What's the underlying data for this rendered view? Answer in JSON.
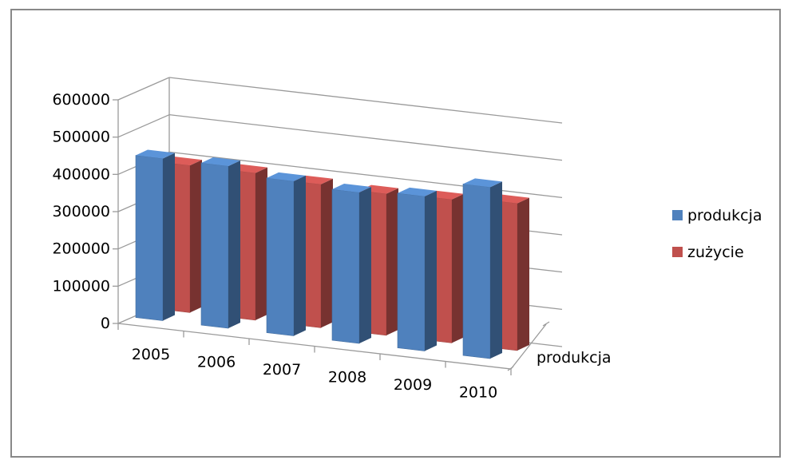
{
  "chart_data": {
    "type": "bar",
    "title": "",
    "xlabel": "",
    "ylabel": "",
    "depth_axis_label": "produkcja",
    "categories": [
      "2005",
      "2006",
      "2007",
      "2008",
      "2009",
      "2010"
    ],
    "series": [
      {
        "name": "produkcja",
        "color": "#4F81BD",
        "values": [
          435000,
          435000,
          415000,
          405000,
          415000,
          460000
        ]
      },
      {
        "name": "zużycie",
        "color": "#C0504D",
        "values": [
          395000,
          395000,
          385000,
          380000,
          385000,
          395000
        ]
      }
    ],
    "ylim": [
      0,
      600000
    ],
    "yticks": [
      "0",
      "100000",
      "200000",
      "300000",
      "400000",
      "500000",
      "600000"
    ],
    "grid": true,
    "legend": "right"
  }
}
